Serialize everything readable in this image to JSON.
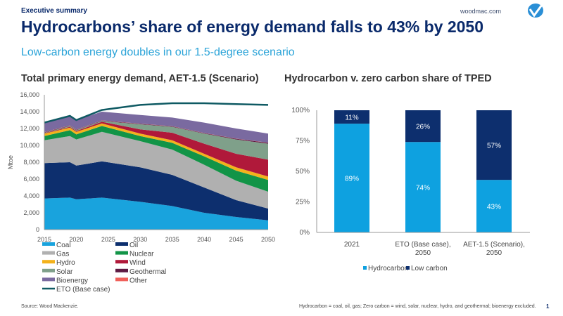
{
  "header": {
    "kicker": "Executive summary",
    "title": "Hydrocarbons’ share of energy demand falls to 43% by 2050",
    "subtitle": "Low-carbon energy doubles in our 1.5-degree scenario",
    "site": "woodmac.com",
    "logo_icon": "woodmac-checkmark-logo"
  },
  "footer": {
    "source": "Source: Wood Mackenzie.",
    "footnote": "Hydrocarbon = coal, oil, gas; Zero carbon = wind,  solar, nuclear, hydro, and geothermal; bioenergy excluded.",
    "page": "1"
  },
  "chart_data": [
    {
      "type": "area",
      "stacked": true,
      "title": "Total primary energy demand, AET-1.5 (Scenario)",
      "xlabel": "",
      "ylabel": "Mtoe",
      "x": [
        2015,
        2019,
        2020,
        2024,
        2030,
        2035,
        2040,
        2045,
        2050
      ],
      "xticks": [
        "2015",
        "2020",
        "2025",
        "2030",
        "2035",
        "2040",
        "2045",
        "2050"
      ],
      "yticks": [
        "0",
        "2,000",
        "4,000",
        "6,000",
        "8,000",
        "10,000",
        "12,000",
        "14,000",
        "16,000"
      ],
      "ylim": [
        0,
        16000
      ],
      "xlim": [
        2015,
        2050
      ],
      "grid": false,
      "legend": "bottom",
      "series": [
        {
          "name": "Coal",
          "color": "#19a3dd",
          "values": [
            3700,
            3800,
            3600,
            3800,
            3300,
            2800,
            2000,
            1500,
            1100
          ]
        },
        {
          "name": "Oil",
          "color": "#0d2f6e",
          "values": [
            4200,
            4200,
            4000,
            4300,
            4100,
            3700,
            3000,
            2000,
            1400
          ]
        },
        {
          "name": "Gas",
          "color": "#b0b0b0",
          "values": [
            2700,
            3100,
            3100,
            3500,
            3100,
            3000,
            2700,
            2300,
            2000
          ]
        },
        {
          "name": "Nuclear",
          "color": "#129447",
          "values": [
            500,
            700,
            600,
            700,
            600,
            800,
            1000,
            1200,
            1400
          ]
        },
        {
          "name": "Hydro",
          "color": "#f3b21c",
          "values": [
            300,
            300,
            300,
            300,
            300,
            300,
            300,
            400,
            400
          ]
        },
        {
          "name": "Wind",
          "color": "#b0193a",
          "values": [
            50,
            100,
            100,
            200,
            500,
            900,
            1200,
            1600,
            2000
          ]
        },
        {
          "name": "Solar",
          "color": "#7fa08a",
          "values": [
            50,
            100,
            100,
            100,
            600,
            700,
            1200,
            1700,
            1900
          ]
        },
        {
          "name": "Geothermal",
          "color": "#5e1a43",
          "values": [
            50,
            50,
            50,
            50,
            50,
            50,
            50,
            80,
            100
          ]
        },
        {
          "name": "Other",
          "color": "#f0605a",
          "values": [
            20,
            20,
            20,
            20,
            20,
            20,
            20,
            20,
            20
          ]
        },
        {
          "name": "Bioenergy",
          "color": "#7a6aa0",
          "values": [
            1130,
            1130,
            1130,
            1030,
            1030,
            1030,
            1230,
            1200,
            1080
          ]
        }
      ],
      "line": {
        "name": "ETO (Base case)",
        "color": "#0f5a63",
        "values": [
          12700,
          13500,
          13000,
          14200,
          14800,
          15000,
          15000,
          14900,
          14800
        ]
      }
    },
    {
      "type": "bar",
      "stacked": true,
      "title": "Hydrocarbon v. zero carbon share of TPED",
      "categories": [
        "2021",
        "ETO (Base case), 2050",
        "AET-1.5 (Scenario), 2050"
      ],
      "category_lines": [
        [
          "2021"
        ],
        [
          "ETO (Base case),",
          "2050"
        ],
        [
          "AET-1.5 (Scenario),",
          "2050"
        ]
      ],
      "yticks": [
        "0%",
        "25%",
        "50%",
        "75%",
        "100%"
      ],
      "ylim": [
        0,
        100
      ],
      "legend": "bottom",
      "series": [
        {
          "name": "Hydrocarbon",
          "color": "#0ea1e0",
          "values": [
            89,
            74,
            43
          ],
          "labels": [
            "89%",
            "74%",
            "43%"
          ]
        },
        {
          "name": "Low carbon",
          "color": "#0d2f6e",
          "values": [
            11,
            26,
            57
          ],
          "labels": [
            "11%",
            "26%",
            "57%"
          ]
        }
      ]
    }
  ]
}
